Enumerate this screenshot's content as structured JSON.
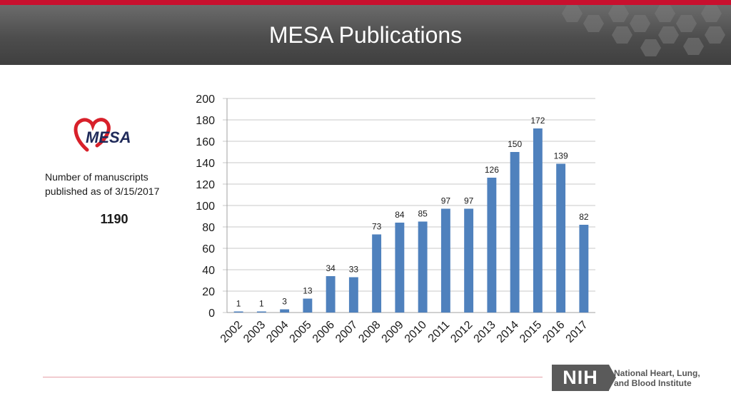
{
  "header": {
    "title": "MESA Publications"
  },
  "logo": {
    "text": "MESA"
  },
  "summary": {
    "label_line1": "Number of manuscripts",
    "label_line2": "published as of 3/15/2017",
    "total": "1190"
  },
  "footer": {
    "org_short": "NIH",
    "org_line1": "National Heart, Lung,",
    "org_line2": "and Blood Institute"
  },
  "colors": {
    "bar": "#4f81bd",
    "accent": "#c8102e",
    "banner": "#4d4d4d"
  },
  "chart_data": {
    "type": "bar",
    "categories": [
      "2002",
      "2003",
      "2004",
      "2005",
      "2006",
      "2007",
      "2008",
      "2009",
      "2010",
      "2011",
      "2012",
      "2013",
      "2014",
      "2015",
      "2016",
      "2017"
    ],
    "values": [
      1,
      1,
      3,
      13,
      34,
      33,
      73,
      84,
      85,
      97,
      97,
      126,
      150,
      172,
      139,
      82
    ],
    "ylim": [
      0,
      200
    ],
    "yticks": [
      0,
      20,
      40,
      60,
      80,
      100,
      120,
      140,
      160,
      180,
      200
    ],
    "grid": true,
    "data_labels": true,
    "legend": "none"
  }
}
